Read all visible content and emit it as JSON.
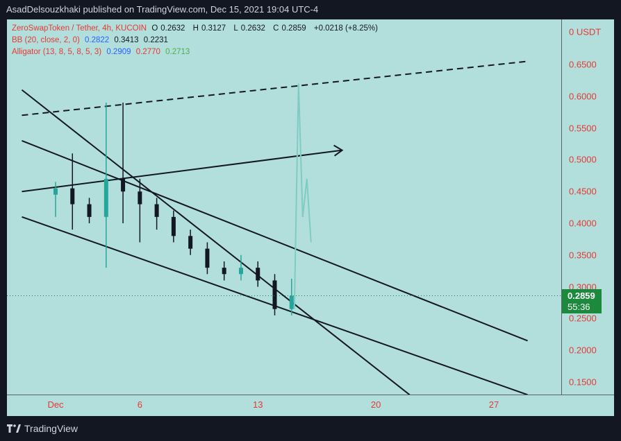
{
  "header": {
    "publisher": "AsadDelsouzkhaki published on TradingView.com, Dec 15, 2021 19:04 UTC-4"
  },
  "legend": {
    "symbol": "ZeroSwapToken / Tether, 4h, KUCOIN",
    "o_label": "O",
    "o_value": "0.2632",
    "h_label": "H",
    "h_value": "0.3127",
    "l_label": "L",
    "l_value": "0.2632",
    "c_label": "C",
    "c_value": "0.2859",
    "change": "+0.0218 (+8.25%)",
    "bb_label": "BB (20, close, 2, 0)",
    "bb_values": [
      "0.2822",
      "0.3413",
      "0.2231"
    ],
    "alligator_label": "Alligator (13, 8, 5, 8, 5, 3)",
    "alligator_values": [
      "0.2909",
      "0.2770",
      "0.2713"
    ]
  },
  "price_axis": {
    "currency_label": "0 USDT",
    "ticks": [
      "0.6500",
      "0.6000",
      "0.5500",
      "0.5000",
      "0.4500",
      "0.4000",
      "0.3500",
      "0.3000",
      "0.2500",
      "0.2000",
      "0.1500"
    ]
  },
  "time_axis": {
    "ticks": [
      "Dec",
      "6",
      "13",
      "20",
      "27"
    ]
  },
  "last_price": {
    "price": "0.2859",
    "countdown": "55:36"
  },
  "footer": {
    "brand": "TradingView"
  },
  "colors": {
    "background": "#131722",
    "chart_bg": "#b2dfdb",
    "axis_text": "#e53935",
    "bb_basis": "#2962ff",
    "bb_upper": "#e53935",
    "bb_lower": "#4caf50",
    "up_candle": "#26a69a",
    "down_candle": "#131722",
    "last_price_badge": "#1b8a3d"
  },
  "chart_data": {
    "type": "candlestick",
    "title": "ZeroSwapToken / Tether, 4h, KUCOIN",
    "xlabel": "",
    "ylabel": "USDT",
    "x_ticks": [
      "Dec",
      "6",
      "13",
      "20",
      "27"
    ],
    "ylim": [
      0.13,
      0.7
    ],
    "series": [
      {
        "name": "ZeroSwapToken / Tether",
        "points": [
          {
            "date": "2021-12-01",
            "open": 0.445,
            "high": 0.465,
            "low": 0.41,
            "close": 0.455
          },
          {
            "date": "2021-12-02",
            "open": 0.455,
            "high": 0.51,
            "low": 0.39,
            "close": 0.43
          },
          {
            "date": "2021-12-03",
            "open": 0.43,
            "high": 0.44,
            "low": 0.4,
            "close": 0.41
          },
          {
            "date": "2021-12-04",
            "open": 0.41,
            "high": 0.59,
            "low": 0.33,
            "close": 0.47
          },
          {
            "date": "2021-12-05",
            "open": 0.47,
            "high": 0.59,
            "low": 0.4,
            "close": 0.45
          },
          {
            "date": "2021-12-06",
            "open": 0.45,
            "high": 0.47,
            "low": 0.37,
            "close": 0.43
          },
          {
            "date": "2021-12-07",
            "open": 0.43,
            "high": 0.44,
            "low": 0.39,
            "close": 0.41
          },
          {
            "date": "2021-12-08",
            "open": 0.41,
            "high": 0.42,
            "low": 0.37,
            "close": 0.38
          },
          {
            "date": "2021-12-09",
            "open": 0.38,
            "high": 0.39,
            "low": 0.35,
            "close": 0.36
          },
          {
            "date": "2021-12-10",
            "open": 0.36,
            "high": 0.37,
            "low": 0.32,
            "close": 0.33
          },
          {
            "date": "2021-12-11",
            "open": 0.33,
            "high": 0.34,
            "low": 0.31,
            "close": 0.32
          },
          {
            "date": "2021-12-12",
            "open": 0.32,
            "high": 0.35,
            "low": 0.31,
            "close": 0.33
          },
          {
            "date": "2021-12-13",
            "open": 0.33,
            "high": 0.34,
            "low": 0.3,
            "close": 0.31
          },
          {
            "date": "2021-12-14",
            "open": 0.31,
            "high": 0.32,
            "low": 0.255,
            "close": 0.265
          },
          {
            "date": "2021-12-15",
            "open": 0.265,
            "high": 0.3127,
            "low": 0.255,
            "close": 0.2859
          }
        ]
      },
      {
        "name": "Projected path",
        "values": [
          0.265,
          0.62,
          0.41,
          0.47,
          0.37
        ]
      }
    ],
    "trendlines": [
      {
        "from": [
          "2021-11-29",
          0.57
        ],
        "to": [
          "2021-12-29",
          0.655
        ],
        "style": "dashed"
      },
      {
        "from": [
          "2021-11-29",
          0.45
        ],
        "to": [
          "2021-12-18",
          0.515
        ],
        "style": "arrow"
      },
      {
        "from": [
          "2021-11-29",
          0.53
        ],
        "to": [
          "2021-12-29",
          0.215
        ],
        "style": "solid"
      },
      {
        "from": [
          "2021-11-29",
          0.41
        ],
        "to": [
          "2021-12-29",
          0.13
        ],
        "style": "solid"
      },
      {
        "from": [
          "2021-11-29",
          0.61
        ],
        "to": [
          "2021-12-22",
          0.13
        ],
        "style": "solid"
      }
    ],
    "grid": false,
    "legend": "top-left",
    "last_value": 0.2859
  }
}
